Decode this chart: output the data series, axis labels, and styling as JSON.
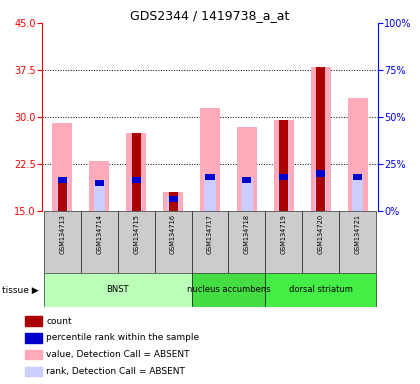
{
  "title": "GDS2344 / 1419738_a_at",
  "samples": [
    "GSM134713",
    "GSM134714",
    "GSM134715",
    "GSM134716",
    "GSM134717",
    "GSM134718",
    "GSM134719",
    "GSM134720",
    "GSM134721"
  ],
  "ylim_left": [
    15,
    45
  ],
  "ylim_right": [
    0,
    100
  ],
  "yticks_left": [
    15,
    22.5,
    30,
    37.5,
    45
  ],
  "yticks_right": [
    0,
    25,
    50,
    75,
    100
  ],
  "ytick_labels_right": [
    "0%",
    "25%",
    "50%",
    "75%",
    "100%"
  ],
  "pink_bar_heights": [
    29.0,
    23.0,
    27.5,
    18.0,
    31.5,
    28.5,
    29.5,
    38.0,
    33.0
  ],
  "red_bar_tops": [
    19.5,
    15.0,
    27.5,
    18.0,
    15.0,
    15.0,
    29.5,
    38.0,
    15.0
  ],
  "red_bar_bottoms": [
    15.0,
    15.0,
    15.0,
    15.0,
    15.0,
    15.0,
    15.0,
    15.0,
    15.0
  ],
  "blue_bar_tops": [
    20.5,
    20.0,
    20.5,
    17.5,
    21.0,
    20.5,
    21.0,
    21.5,
    21.0
  ],
  "blue_bar_bottoms": [
    19.5,
    19.0,
    19.5,
    16.5,
    20.0,
    19.5,
    20.0,
    20.5,
    20.0
  ],
  "lavender_bar_tops": [
    20.5,
    20.0,
    20.5,
    17.5,
    21.0,
    20.5,
    21.0,
    21.5,
    21.0
  ],
  "lavender_bar_bottoms": [
    15.0,
    15.0,
    15.0,
    15.0,
    15.0,
    15.0,
    15.0,
    15.0,
    15.0
  ],
  "color_red": "#aa0000",
  "color_blue": "#0000cc",
  "color_pink": "#ffaabb",
  "color_lavender": "#ccccff",
  "color_gray": "#cccccc",
  "tissue_groups": [
    {
      "label": "BNST",
      "start": 0,
      "end": 3,
      "color": "#bbffbb"
    },
    {
      "label": "nucleus accumbens",
      "start": 4,
      "end": 5,
      "color": "#44dd44"
    },
    {
      "label": "dorsal striatum",
      "start": 6,
      "end": 8,
      "color": "#44ee44"
    }
  ],
  "legend_items": [
    {
      "color": "#aa0000",
      "label": "count"
    },
    {
      "color": "#0000cc",
      "label": "percentile rank within the sample"
    },
    {
      "color": "#ffaabb",
      "label": "value, Detection Call = ABSENT"
    },
    {
      "color": "#ccccff",
      "label": "rank, Detection Call = ABSENT"
    }
  ],
  "bar_width": 0.55
}
